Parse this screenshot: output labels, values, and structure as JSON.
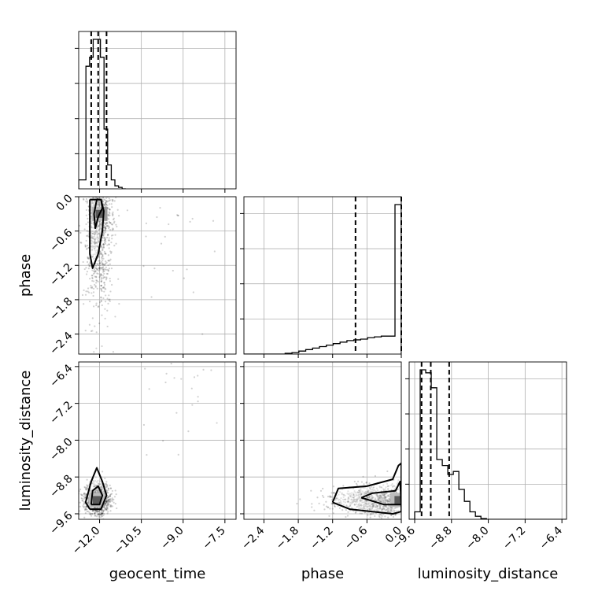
{
  "chart_data": {
    "type": "corner",
    "parameters": [
      "geocent_time",
      "phase",
      "luminosity_distance"
    ],
    "axis_labels": {
      "geocent_time": "geocent_time",
      "phase": "phase",
      "luminosity_distance": "luminosity_distance"
    },
    "ranges": {
      "geocent_time": [
        -12.75,
        -7.1
      ],
      "phase": [
        -2.75,
        0.0
      ],
      "luminosity_distance": [
        -9.72,
        -6.3
      ]
    },
    "ticks": {
      "geocent_time": [
        -12.0,
        -10.5,
        -9.0,
        -7.5
      ],
      "phase": [
        -2.4,
        -1.8,
        -1.2,
        -0.6,
        0.0
      ],
      "luminosity_distance": [
        -9.6,
        -8.8,
        -8.0,
        -7.2,
        -6.4
      ]
    },
    "tick_labels": {
      "geocent_time": [
        "−12.0",
        "−10.5",
        "−9.0",
        "−7.5"
      ],
      "phase": [
        "−2.4",
        "−1.8",
        "−1.2",
        "−0.6",
        "0.0"
      ],
      "luminosity_distance": [
        "−9.6",
        "−8.8",
        "−8.0",
        "−7.2",
        "−6.4"
      ]
    },
    "quantiles": {
      "geocent_time": [
        -12.3,
        -12.05,
        -11.75
      ],
      "phase": [
        -0.8,
        0.0
      ],
      "luminosity_distance": [
        -9.45,
        -9.25,
        -8.85
      ]
    },
    "histograms": {
      "geocent_time": {
        "edges": [
          -12.75,
          -12.62,
          -12.49,
          -12.36,
          -12.23,
          -12.1,
          -11.97,
          -11.84,
          -11.71,
          -11.58,
          -11.45,
          -11.32,
          -11.19,
          -11.06
        ],
        "counts": [
          0.06,
          0.06,
          0.82,
          0.88,
          1.0,
          1.0,
          0.88,
          0.4,
          0.16,
          0.06,
          0.02,
          0.01,
          0.0
        ]
      },
      "phase": {
        "edges": [
          -2.75,
          -2.63,
          -2.51,
          -2.39,
          -2.27,
          -2.15,
          -2.03,
          -1.91,
          -1.79,
          -1.67,
          -1.55,
          -1.43,
          -1.31,
          -1.19,
          -1.07,
          -0.95,
          -0.83,
          -0.71,
          -0.59,
          -0.47,
          -0.35,
          -0.23,
          -0.11,
          0.0
        ],
        "counts": [
          0.0,
          0.0,
          0.0,
          0.0,
          0.0,
          0.0,
          0.005,
          0.01,
          0.02,
          0.03,
          0.04,
          0.05,
          0.06,
          0.07,
          0.08,
          0.09,
          0.095,
          0.1,
          0.11,
          0.115,
          0.12,
          0.12,
          1.0
        ]
      },
      "luminosity_distance": {
        "edges": [
          -9.72,
          -9.6,
          -9.48,
          -9.36,
          -9.24,
          -9.12,
          -9.0,
          -8.88,
          -8.76,
          -8.64,
          -8.52,
          -8.4,
          -8.28,
          -8.16,
          -8.04,
          -7.92,
          -6.3
        ],
        "counts": [
          0.0,
          0.05,
          1.0,
          0.98,
          0.88,
          0.4,
          0.36,
          0.3,
          0.32,
          0.2,
          0.12,
          0.05,
          0.02,
          0.005,
          0.0,
          0.0
        ]
      }
    },
    "pairs": [
      {
        "x": "geocent_time",
        "y": "phase",
        "center": [
          -12.0,
          -0.3
        ],
        "contours": [
          [
            [
              -12.35,
              -0.05
            ],
            [
              -11.95,
              -0.05
            ],
            [
              -11.85,
              -0.25
            ],
            [
              -11.9,
              -0.6
            ],
            [
              -12.05,
              -1.0
            ],
            [
              -12.25,
              -1.25
            ],
            [
              -12.35,
              -1.0
            ],
            [
              -12.35,
              -0.4
            ],
            [
              -12.35,
              -0.05
            ]
          ],
          [
            [
              -12.1,
              -0.05
            ],
            [
              -11.95,
              -0.05
            ],
            [
              -11.9,
              -0.2
            ],
            [
              -12.05,
              -0.35
            ],
            [
              -12.15,
              -0.55
            ],
            [
              -12.2,
              -0.3
            ],
            [
              -12.1,
              -0.05
            ]
          ]
        ]
      },
      {
        "x": "geocent_time",
        "y": "luminosity_distance",
        "center": [
          -12.1,
          -9.3
        ],
        "contours": [
          [
            [
              -12.35,
              -9.5
            ],
            [
              -11.95,
              -9.5
            ],
            [
              -11.75,
              -9.2
            ],
            [
              -11.9,
              -8.9
            ],
            [
              -12.1,
              -8.6
            ],
            [
              -12.3,
              -8.9
            ],
            [
              -12.5,
              -9.35
            ],
            [
              -12.35,
              -9.5
            ]
          ],
          [
            [
              -12.3,
              -9.4
            ],
            [
              -12.0,
              -9.4
            ],
            [
              -11.9,
              -9.2
            ],
            [
              -12.05,
              -9.0
            ],
            [
              -12.25,
              -9.1
            ],
            [
              -12.3,
              -9.4
            ]
          ]
        ]
      },
      {
        "x": "phase",
        "y": "luminosity_distance",
        "center": [
          -0.05,
          -9.3
        ],
        "contours": [
          [
            [
              -1.2,
              -9.35
            ],
            [
              -1.1,
              -9.05
            ],
            [
              -0.6,
              -9.0
            ],
            [
              -0.15,
              -8.85
            ],
            [
              -0.05,
              -8.55
            ],
            [
              0.0,
              -8.5
            ],
            [
              0.0,
              -9.55
            ],
            [
              -0.15,
              -9.6
            ],
            [
              -0.9,
              -9.5
            ],
            [
              -1.2,
              -9.35
            ]
          ],
          [
            [
              -0.7,
              -9.25
            ],
            [
              -0.5,
              -9.15
            ],
            [
              -0.1,
              -9.1
            ],
            [
              -0.02,
              -8.9
            ],
            [
              0.0,
              -9.4
            ],
            [
              -0.3,
              -9.4
            ],
            [
              -0.7,
              -9.25
            ]
          ]
        ]
      }
    ],
    "grid": true
  }
}
